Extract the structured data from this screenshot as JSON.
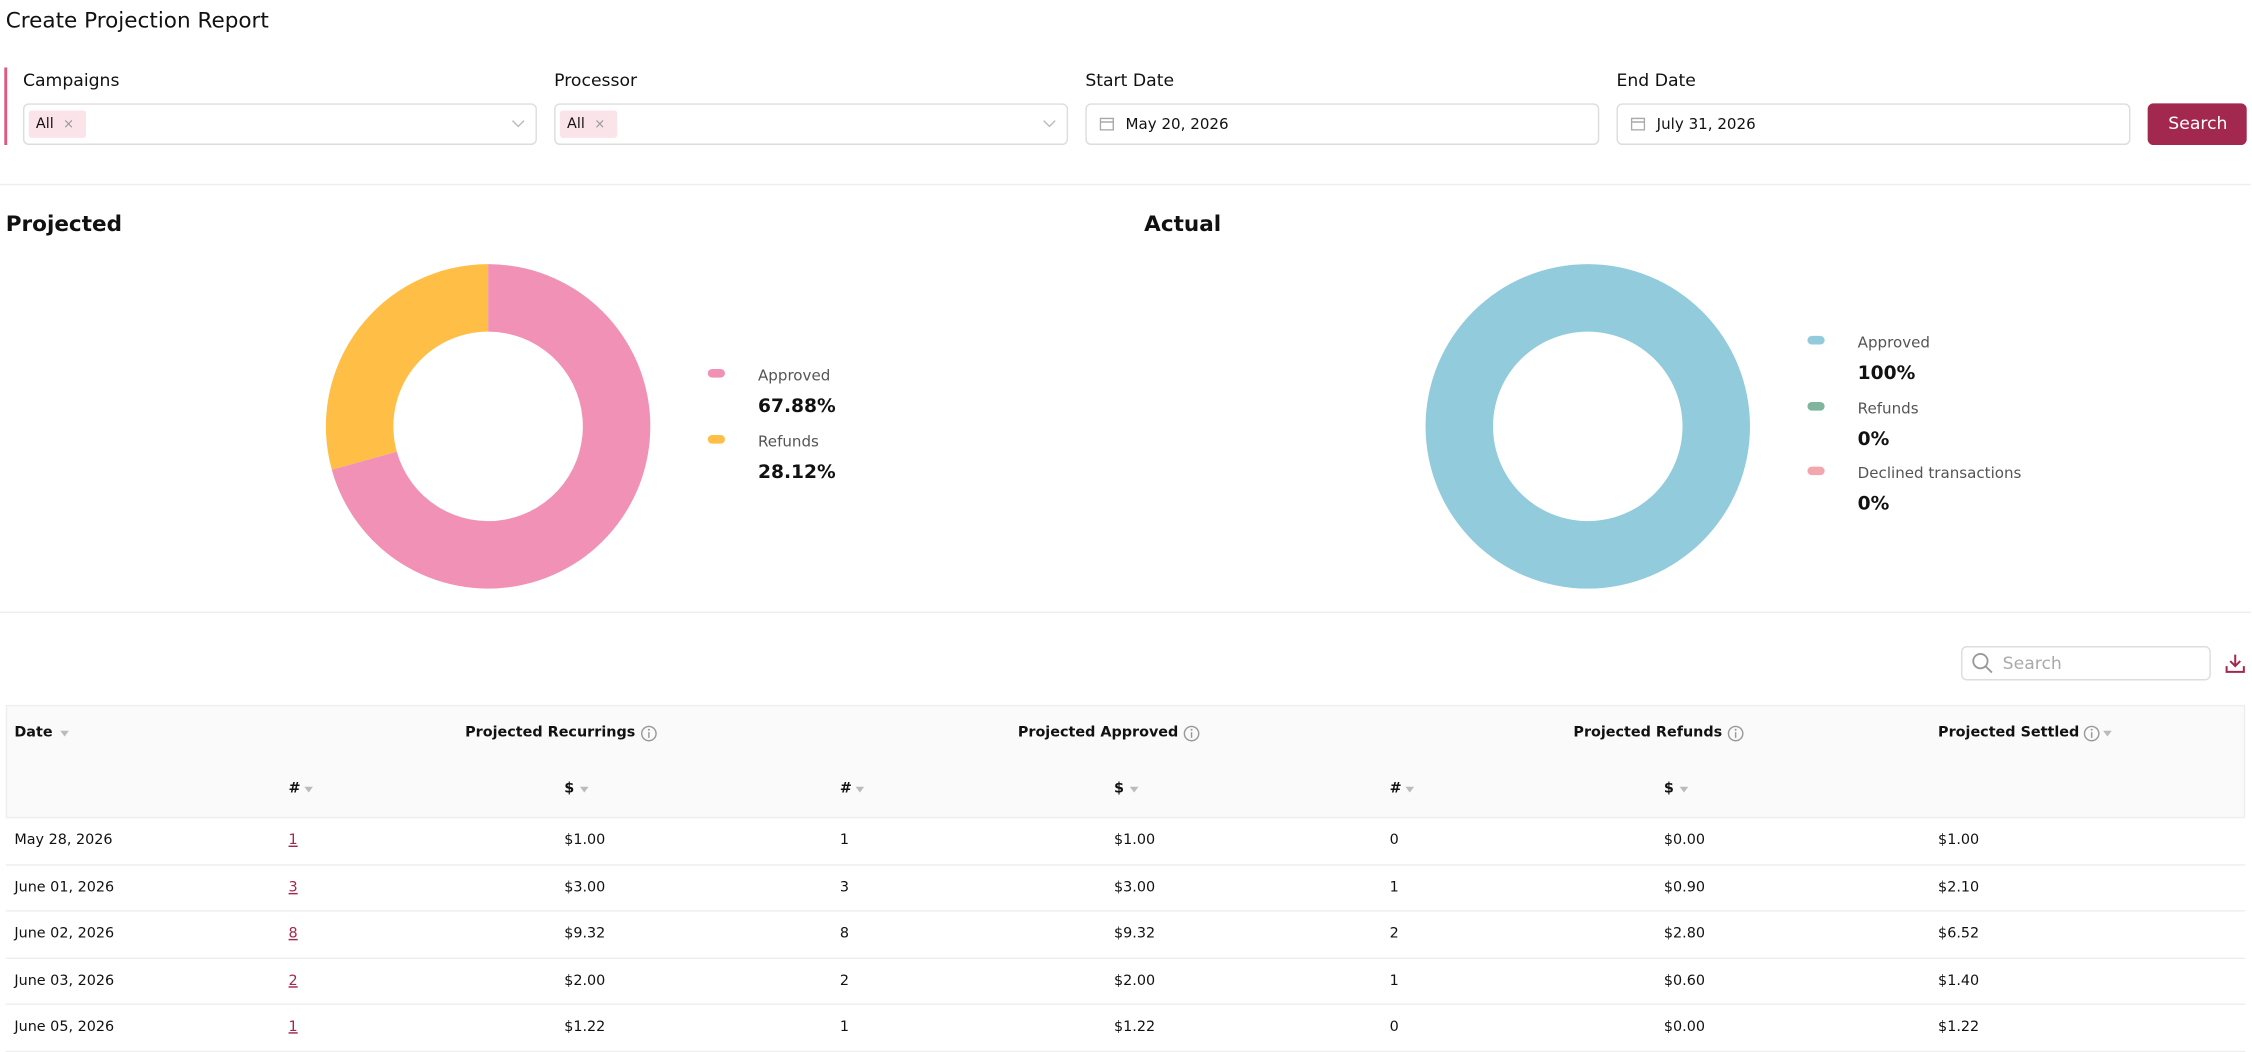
{
  "header": {
    "title": "Create Projection Report"
  },
  "filters": [
    {
      "label": "Campaigns",
      "tag": "All"
    },
    {
      "label": "Processor",
      "tag": "All"
    },
    {
      "label": "Start Date",
      "value": "May 20, 2026"
    },
    {
      "label": "End Date",
      "value": "July 31, 2026"
    }
  ],
  "search_button": "Search",
  "chart_data": [
    {
      "type": "pie",
      "title": "Projected",
      "categories": [
        "Approved",
        "Refunds"
      ],
      "values": [
        67.88,
        28.12
      ],
      "value_labels": [
        "67.88%",
        "28.12%"
      ],
      "colors": [
        "#f191b5",
        "#ffbe45"
      ]
    },
    {
      "type": "pie",
      "title": "Actual",
      "categories": [
        "Approved",
        "Refunds",
        "Declined transactions"
      ],
      "values": [
        100,
        0,
        0
      ],
      "value_labels": [
        "100%",
        "0%",
        "0%"
      ],
      "colors": [
        "#92cbdc",
        "#7fb59c",
        "#f4a6ae"
      ]
    }
  ],
  "table": {
    "search_placeholder": "Search",
    "columns": [
      "Date",
      "Projected Recurrings",
      "Projected Approved",
      "Projected Refunds",
      "Projected Settled"
    ],
    "subcolumns": [
      "#",
      "$",
      "#",
      "$",
      "#",
      "$"
    ],
    "rows": [
      [
        "May 28, 2026",
        "1",
        "$1.00",
        "1",
        "$1.00",
        "0",
        "$0.00",
        "$1.00"
      ],
      [
        "June 01, 2026",
        "3",
        "$3.00",
        "3",
        "$3.00",
        "1",
        "$0.90",
        "$2.10"
      ],
      [
        "June 02, 2026",
        "8",
        "$9.32",
        "8",
        "$9.32",
        "2",
        "$2.80",
        "$6.52"
      ],
      [
        "June 03, 2026",
        "2",
        "$2.00",
        "2",
        "$2.00",
        "1",
        "$0.60",
        "$1.40"
      ],
      [
        "June 05, 2026",
        "1",
        "$1.22",
        "1",
        "$1.22",
        "0",
        "$0.00",
        "$1.22"
      ]
    ]
  }
}
